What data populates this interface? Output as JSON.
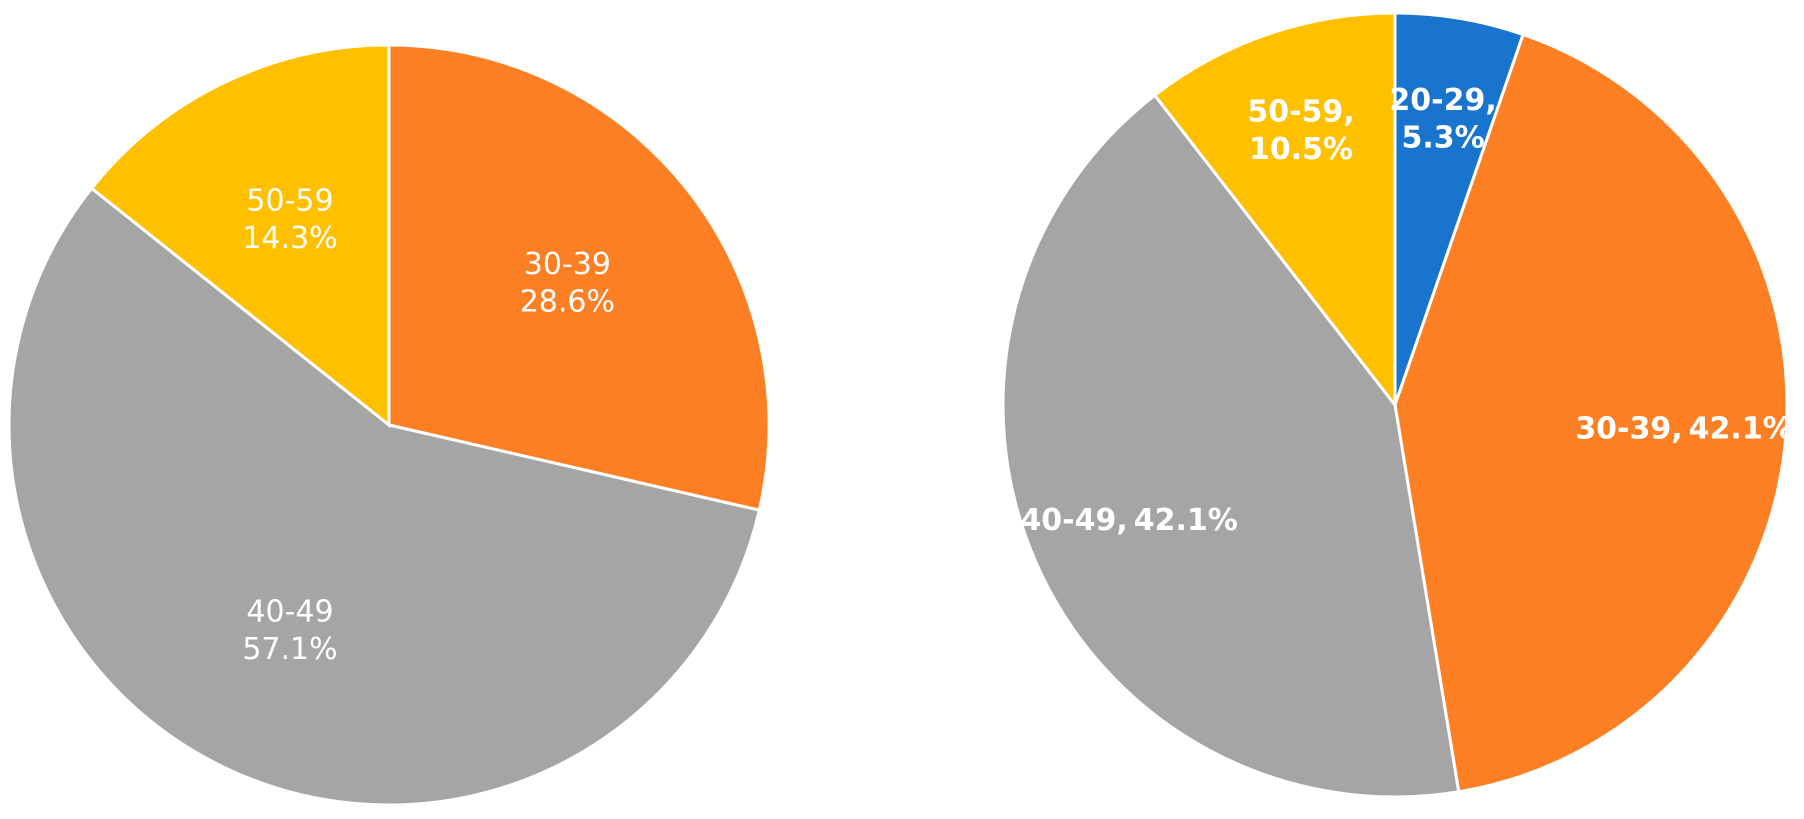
{
  "chart_data": [
    {
      "type": "pie",
      "categories": [
        "30-39",
        "40-49",
        "50-59"
      ],
      "values": [
        28.6,
        57.1,
        14.3
      ],
      "value_labels": [
        "28.6%",
        "57.1%",
        "14.3%"
      ],
      "colors": [
        "#fd7f23",
        "#a5a5a5",
        "#ffc000"
      ]
    },
    {
      "type": "pie",
      "categories": [
        "20-29",
        "30-39",
        "40-49",
        "50-59"
      ],
      "values": [
        5.3,
        42.1,
        42.1,
        10.5
      ],
      "value_labels": [
        "5.3%",
        "42.1%",
        "42.1%",
        "10.5%"
      ],
      "label_separator": ",",
      "colors": [
        "#1874cd",
        "#fd7f23",
        "#a5a5a5",
        "#ffc000"
      ]
    }
  ]
}
